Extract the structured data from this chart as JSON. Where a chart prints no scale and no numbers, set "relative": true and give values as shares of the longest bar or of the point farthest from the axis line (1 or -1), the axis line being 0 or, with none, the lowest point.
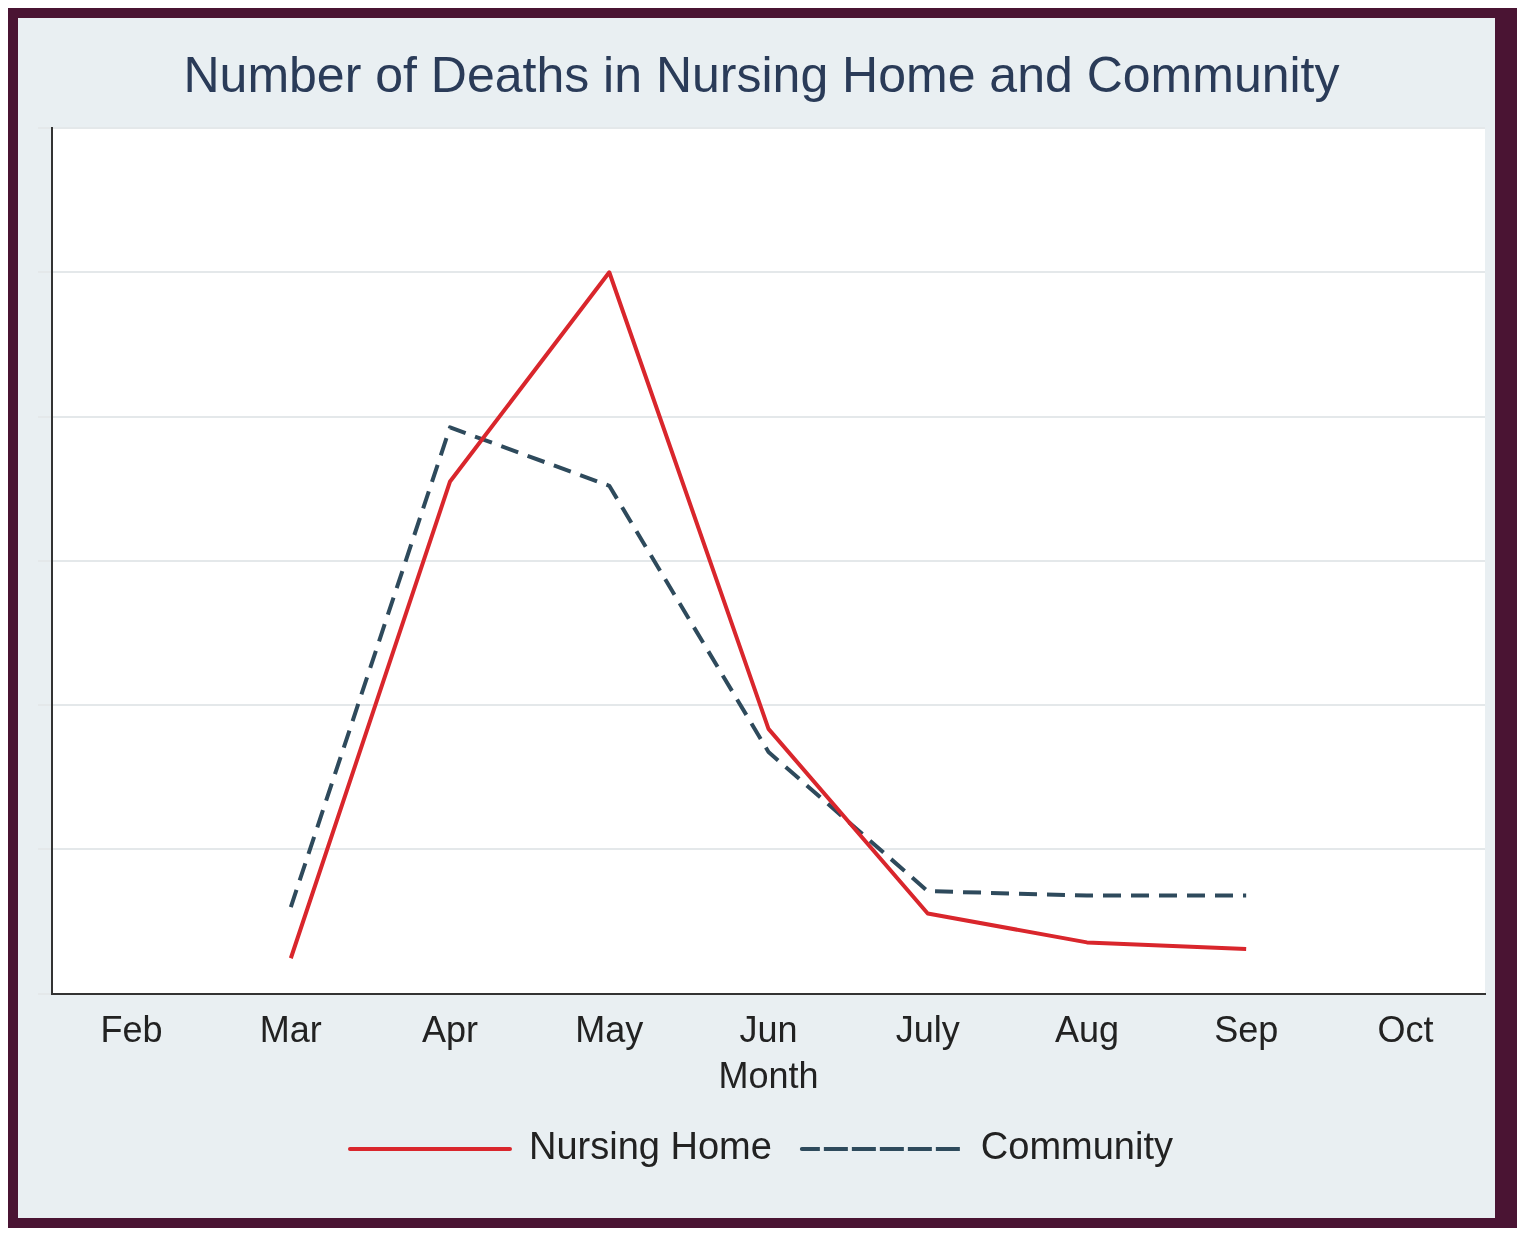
{
  "chart_data": {
    "type": "line",
    "title": "Number of Deaths in Nursing Home and Community",
    "xlabel": "Month",
    "relative": true,
    "grid": "y",
    "legend": "bottom",
    "marker": "none",
    "categories": [
      "Feb",
      "Mar",
      "Apr",
      "May",
      "Jun",
      "July",
      "Aug",
      "Sep",
      "Oct"
    ],
    "series": [
      {
        "name": "Nursing Home",
        "color": "#d9262c",
        "line_style": "solid",
        "values": [
          null,
          0.049,
          0.71,
          1,
          0.367,
          0.111,
          0.071,
          0.062,
          null
        ]
      },
      {
        "name": "Community",
        "color": "#2e4a5c",
        "line_style": "dashed",
        "values": [
          null,
          0.12,
          0.785,
          0.704,
          0.335,
          0.142,
          0.136,
          0.136,
          null
        ]
      }
    ]
  }
}
